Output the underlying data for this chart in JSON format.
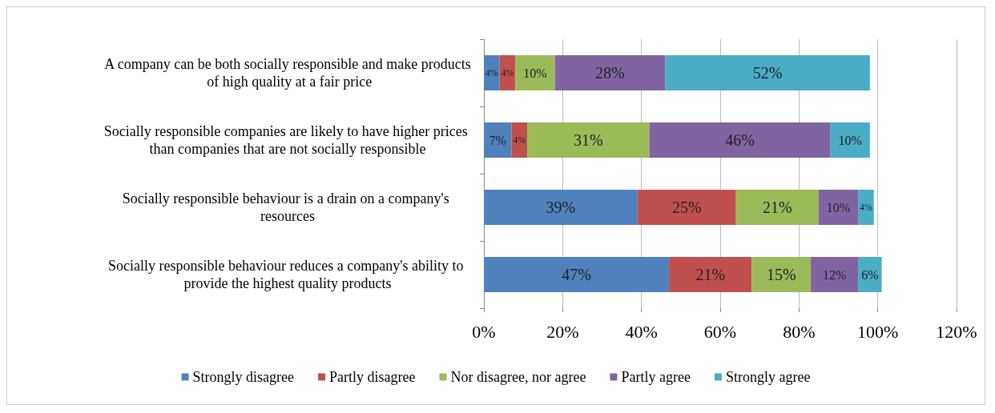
{
  "chart_data": {
    "type": "bar",
    "orientation": "horizontal",
    "stacked": true,
    "categories": [
      "A company can be both socially responsible and make products of high quality at a fair price",
      "Socially responsible companies are likely to have higher prices than companies that are not socially responsible",
      "Socially responsible behaviour is a drain on a company's resources",
      "Socially responsible behaviour reduces a company's ability to provide the highest quality products"
    ],
    "series": [
      {
        "name": "Strongly disagree",
        "color": "#4f81bd",
        "values": [
          4,
          7,
          39,
          47
        ],
        "value_labels": [
          "4%",
          "7%",
          "39%",
          "47%"
        ]
      },
      {
        "name": "Partly disagree",
        "color": "#c0504d",
        "values": [
          4,
          4,
          25,
          21
        ],
        "value_labels": [
          "4%",
          "4%",
          "25%",
          "21%"
        ]
      },
      {
        "name": "Nor disagree, nor agree",
        "color": "#9bbb59",
        "values": [
          10,
          31,
          21,
          15
        ],
        "value_labels": [
          "10%",
          "31%",
          "21%",
          "15%"
        ]
      },
      {
        "name": "Partly agree",
        "color": "#8064a2",
        "values": [
          28,
          46,
          10,
          12
        ],
        "value_labels": [
          "28%",
          "46%",
          "10%",
          "12%"
        ]
      },
      {
        "name": "Strongly agree",
        "color": "#4bacc6",
        "values": [
          52,
          10,
          4,
          6
        ],
        "value_labels": [
          "52%",
          "10%",
          "4%",
          "6%"
        ]
      }
    ],
    "xlim": [
      0,
      120
    ],
    "xticks": [
      {
        "value": 0,
        "label": "0%"
      },
      {
        "value": 20,
        "label": "20%"
      },
      {
        "value": 40,
        "label": "40%"
      },
      {
        "value": 60,
        "label": "60%"
      },
      {
        "value": 80,
        "label": "80%"
      },
      {
        "value": 100,
        "label": "100%"
      },
      {
        "value": 120,
        "label": "120%"
      }
    ],
    "grid": "x",
    "legend": "bottom"
  }
}
